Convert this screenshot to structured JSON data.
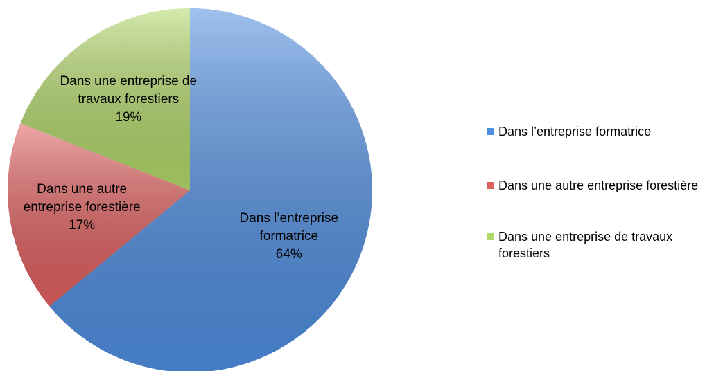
{
  "chart_data": {
    "type": "pie",
    "categories": [
      "Dans l’entreprise formatrice",
      "Dans une autre entreprise forestière",
      "Dans une entreprise de travaux forestiers"
    ],
    "values": [
      64,
      17,
      19
    ],
    "value_labels": [
      "64%",
      "17%",
      "19%"
    ],
    "colors": [
      "#4f8ee0",
      "#e06060",
      "#b2d86a"
    ],
    "legend": "right"
  }
}
